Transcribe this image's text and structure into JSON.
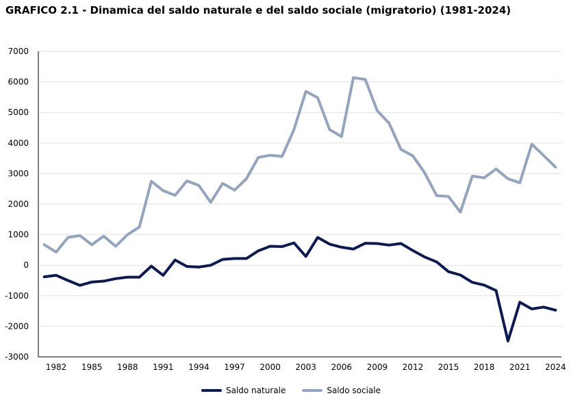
{
  "chart_data": {
    "type": "line",
    "title": "GRAFICO 2.1 - Dinamica del saldo naturale e del saldo sociale (migratorio) (1981-2024)",
    "xlabel": "",
    "ylabel": "",
    "ylim": [
      -3000,
      7000
    ],
    "yticks": [
      7000,
      6000,
      5000,
      4000,
      3000,
      2000,
      1000,
      0,
      -1000,
      -2000,
      -3000
    ],
    "xtick_labels": [
      "1982",
      "1985",
      "1988",
      "1991",
      "1994",
      "1997",
      "2000",
      "2003",
      "2006",
      "2009",
      "2012",
      "2015",
      "2018",
      "2021",
      "2024"
    ],
    "grid": true,
    "legend_position": "bottom",
    "x": [
      1981,
      1982,
      1983,
      1984,
      1985,
      1986,
      1987,
      1988,
      1989,
      1990,
      1991,
      1992,
      1993,
      1994,
      1995,
      1996,
      1997,
      1998,
      1999,
      2000,
      2001,
      2002,
      2003,
      2004,
      2005,
      2006,
      2007,
      2008,
      2009,
      2010,
      2011,
      2012,
      2013,
      2014,
      2015,
      2016,
      2017,
      2018,
      2019,
      2020,
      2021,
      2022,
      2023,
      2024
    ],
    "series": [
      {
        "name": "Saldo naturale",
        "color": "#0d1a4f",
        "values": [
          -380,
          -330,
          -500,
          -660,
          -550,
          -520,
          -440,
          -390,
          -390,
          -30,
          -330,
          170,
          -40,
          -60,
          0,
          190,
          220,
          220,
          470,
          620,
          610,
          730,
          290,
          910,
          690,
          590,
          530,
          720,
          710,
          660,
          710,
          480,
          270,
          110,
          -210,
          -320,
          -560,
          -650,
          -830,
          -2480,
          -1210,
          -1430,
          -1370,
          -1470
        ]
      },
      {
        "name": "Saldo sociale",
        "color": "#95a4bd",
        "values": [
          670,
          430,
          910,
          970,
          670,
          950,
          620,
          1000,
          1250,
          2750,
          2440,
          2290,
          2760,
          2610,
          2060,
          2680,
          2460,
          2830,
          3530,
          3600,
          3560,
          4440,
          5690,
          5480,
          4440,
          4210,
          6140,
          6080,
          5060,
          4650,
          3790,
          3580,
          3020,
          2280,
          2250,
          1740,
          2920,
          2860,
          3150,
          2830,
          2700,
          3960,
          3590,
          3210
        ]
      }
    ]
  }
}
